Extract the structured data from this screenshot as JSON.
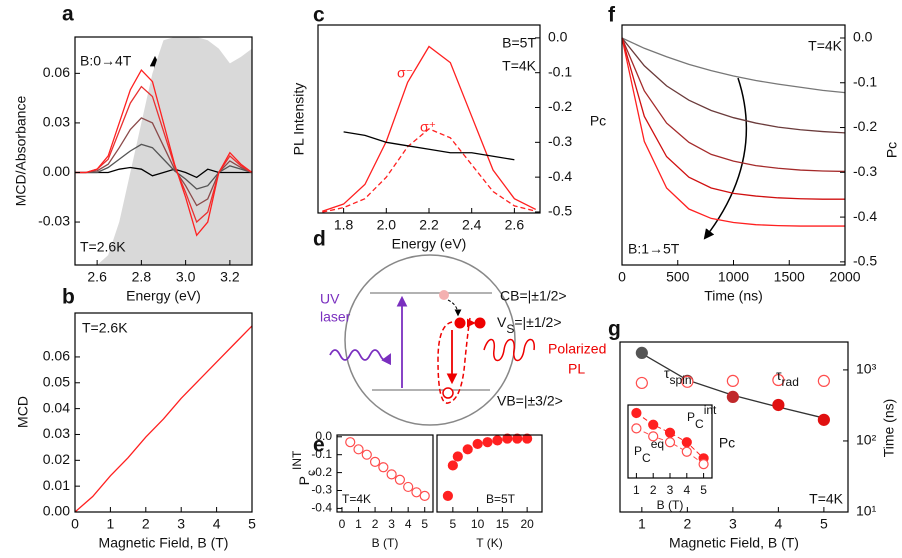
{
  "chart_data": [
    {
      "type": "line",
      "panel": "a",
      "xlabel": "Energy (eV)",
      "ylabel": "MCD/Absorbance",
      "xlim": [
        2.5,
        3.3
      ],
      "xticks": [
        2.6,
        2.8,
        {
          "value": 3.0,
          "label": "3.0"
        },
        3.2
      ],
      "ylim": [
        -0.056,
        0.082
      ],
      "yticks": [
        -0.03,
        {
          "value": 0,
          "label": "0.00"
        },
        0.03,
        0.06
      ],
      "annotations": [
        "B:0→4T",
        "T=2.6K"
      ],
      "x": [
        2.5,
        2.55,
        2.6,
        2.65,
        2.7,
        2.75,
        2.8,
        2.85,
        2.9,
        2.95,
        3.0,
        3.05,
        3.1,
        3.15,
        3.2,
        3.25,
        3.3
      ],
      "series": [
        {
          "type": "area",
          "color": "#d9d9d9",
          "values": [
            -0.056,
            -0.056,
            -0.056,
            -0.05,
            -0.03,
            0.0,
            0.03,
            0.06,
            0.08,
            0.082,
            0.082,
            0.082,
            0.08,
            0.075,
            0.066,
            0.07,
            0.075
          ]
        },
        {
          "color": "#000000",
          "values": [
            0,
            0,
            0,
            0,
            0.002,
            0.003,
            0.002,
            -0.002,
            0,
            0.002,
            0,
            -0.003,
            0.002,
            0,
            0,
            0,
            0
          ]
        },
        {
          "color": "#555555",
          "values": [
            0,
            0,
            0,
            0.003,
            0.008,
            0.013,
            0.017,
            0.015,
            0.008,
            0.001,
            -0.004,
            -0.01,
            -0.008,
            0,
            0.004,
            0.002,
            0
          ]
        },
        {
          "color": "#8b4a4a",
          "values": [
            0,
            0,
            0.001,
            0.005,
            0.015,
            0.026,
            0.033,
            0.03,
            0.016,
            0.002,
            -0.008,
            -0.02,
            -0.016,
            0,
            0.007,
            0.003,
            0
          ]
        },
        {
          "color": "#e83030",
          "values": [
            0,
            0,
            0.002,
            0.008,
            0.025,
            0.042,
            0.052,
            0.046,
            0.025,
            0.004,
            -0.012,
            -0.03,
            -0.024,
            0,
            0.01,
            0.004,
            0
          ]
        },
        {
          "color": "#ff2020",
          "values": [
            0,
            0,
            0.002,
            0.01,
            0.03,
            0.05,
            0.062,
            0.055,
            0.03,
            0.005,
            -0.015,
            -0.038,
            -0.03,
            0,
            0.012,
            0.005,
            0
          ]
        }
      ]
    },
    {
      "type": "line",
      "panel": "b",
      "xlabel": "Magnetic Field, B (T)",
      "ylabel": "MCD",
      "xlim": [
        0,
        5
      ],
      "xticks": [
        0,
        1,
        2,
        3,
        4,
        5
      ],
      "ylim": [
        0,
        0.077
      ],
      "yticks": [
        {
          "value": 0,
          "label": "0.00"
        },
        0.01,
        0.02,
        0.03,
        0.04,
        0.05,
        0.06
      ],
      "annotations": [
        "T=2.6K"
      ],
      "x": [
        0,
        0.5,
        1,
        1.5,
        2,
        2.5,
        3,
        3.5,
        4,
        4.5,
        5
      ],
      "series": [
        {
          "color": "#ff2020",
          "values": [
            0,
            0.006,
            0.014,
            0.021,
            0.029,
            0.036,
            0.044,
            0.051,
            0.058,
            0.065,
            0.072
          ]
        }
      ]
    },
    {
      "type": "line",
      "panel": "c",
      "xlabel": "Energy (eV)",
      "ylabel": "PL Intensity",
      "y2label": "Pc",
      "xlim": [
        1.68,
        2.72
      ],
      "xticks": [
        1.8,
        {
          "value": 2.0,
          "label": "2.0"
        },
        2.2,
        2.4,
        2.6
      ],
      "ylim": [
        0,
        1.05
      ],
      "y2lim": [
        -0.503,
        0.037
      ],
      "y2ticks": [
        {
          "value": 0,
          "label": "0.0"
        },
        -0.1,
        -0.2,
        -0.3,
        -0.4,
        -0.5
      ],
      "annotations": [
        "B=5T",
        "T=4K"
      ],
      "x": [
        1.7,
        1.8,
        1.9,
        2.0,
        2.1,
        2.2,
        2.3,
        2.4,
        2.5,
        2.6,
        2.7
      ],
      "series": [
        {
          "name": "σ⁻",
          "color": "#ff2020",
          "values": [
            0.01,
            0.05,
            0.16,
            0.4,
            0.73,
            0.93,
            0.84,
            0.54,
            0.24,
            0.08,
            0.02
          ]
        },
        {
          "name": "σ⁺",
          "color": "#ff2020",
          "dash": true,
          "values": [
            0.005,
            0.03,
            0.08,
            0.2,
            0.37,
            0.47,
            0.42,
            0.27,
            0.12,
            0.04,
            0.01
          ]
        },
        {
          "color": "#000000",
          "axis": "y2",
          "values": [
            null,
            -0.27,
            -0.28,
            -0.3,
            -0.31,
            -0.32,
            -0.33,
            -0.33,
            -0.34,
            -0.35,
            null
          ]
        }
      ]
    },
    {
      "type": "scatter",
      "panel": "e",
      "xlabel": "B (T)",
      "ylabel": {
        "base": "P",
        "sub": "c",
        "sup": "INT"
      },
      "xlim": [
        -0.3,
        5.5
      ],
      "xticks": [
        0,
        1,
        2,
        3,
        4,
        5
      ],
      "ylim": [
        -0.42,
        0.01
      ],
      "yticks": [
        {
          "value": 0,
          "label": "0.0"
        },
        -0.1,
        -0.2,
        -0.3,
        -0.4
      ],
      "annotations": [
        "T=4K"
      ],
      "x": [
        0.5,
        1,
        1.5,
        2,
        2.5,
        3,
        3.5,
        4,
        4.5,
        5
      ],
      "series": [
        {
          "color": "#ff4d4d",
          "marker": "open",
          "values": [
            -0.03,
            -0.07,
            -0.1,
            -0.14,
            -0.17,
            -0.21,
            -0.24,
            -0.28,
            -0.31,
            -0.33
          ]
        }
      ]
    },
    {
      "type": "scatter",
      "xlabel": "T (K)",
      "xlim": [
        1.8,
        23
      ],
      "xticks": [
        5,
        10,
        15,
        20
      ],
      "ylim": [
        -0.42,
        0.01
      ],
      "annotations": [
        "B=5T"
      ],
      "x": [
        4,
        5,
        6,
        8,
        10,
        12,
        14,
        16,
        18,
        20
      ],
      "series": [
        {
          "color": "#ff2020",
          "marker": "filled",
          "values": [
            -0.33,
            -0.16,
            -0.11,
            -0.07,
            -0.04,
            -0.03,
            -0.02,
            -0.01,
            -0.01,
            -0.01
          ]
        }
      ]
    },
    {
      "type": "line",
      "panel": "f",
      "xlabel": "Time (ns)",
      "y2label": "Pc",
      "xlim": [
        0,
        2000
      ],
      "xticks": [
        0,
        500,
        1000,
        1500,
        2000
      ],
      "y2lim": [
        -0.507,
        0.029
      ],
      "y2ticks": [
        {
          "value": 0,
          "label": "0.0"
        },
        -0.1,
        -0.2,
        -0.3,
        -0.4,
        -0.5
      ],
      "annotations": [
        "T=4K",
        "B:1→5T"
      ],
      "x": [
        0,
        200,
        400,
        600,
        800,
        1000,
        1200,
        1400,
        1600,
        1800,
        2000
      ],
      "series": [
        {
          "color": "#777777",
          "axis": "y2",
          "values": [
            0,
            -0.023,
            -0.042,
            -0.059,
            -0.073,
            -0.085,
            -0.095,
            -0.103,
            -0.11,
            -0.117,
            -0.122
          ]
        },
        {
          "color": "#6b3b3b",
          "axis": "y2",
          "values": [
            0,
            -0.062,
            -0.107,
            -0.139,
            -0.162,
            -0.178,
            -0.19,
            -0.199,
            -0.205,
            -0.209,
            -0.212
          ]
        },
        {
          "color": "#a52a2a",
          "axis": "y2",
          "values": [
            0,
            -0.118,
            -0.19,
            -0.233,
            -0.26,
            -0.275,
            -0.285,
            -0.291,
            -0.295,
            -0.297,
            -0.298
          ]
        },
        {
          "color": "#d01010",
          "axis": "y2",
          "values": [
            0,
            -0.175,
            -0.265,
            -0.311,
            -0.335,
            -0.347,
            -0.353,
            -0.357,
            -0.359,
            -0.36,
            -0.36
          ]
        },
        {
          "color": "#ff2020",
          "axis": "y2",
          "values": [
            0,
            -0.231,
            -0.335,
            -0.382,
            -0.403,
            -0.412,
            -0.417,
            -0.419,
            -0.42,
            -0.42,
            -0.42
          ]
        }
      ]
    },
    {
      "type": "scatter",
      "panel": "g",
      "xlabel": "Magnetic Field, B (T)",
      "y2label": "Time (ns)",
      "xlim": [
        0.52,
        5.53
      ],
      "xticks": [
        1,
        2,
        3,
        4,
        5
      ],
      "y2lim": [
        10,
        2470
      ],
      "y2log": true,
      "y2ticks": [
        {
          "value": 10,
          "label": "10¹"
        },
        {
          "value": 100,
          "label": "10²"
        },
        {
          "value": 1000,
          "label": "10³"
        }
      ],
      "annotations": [
        "T=4K"
      ],
      "x": [
        1,
        2,
        3,
        4,
        5
      ],
      "series": [
        {
          "type": "line",
          "color": "#333333",
          "axis": "y2",
          "values": [
            1700,
            720,
            440,
            300,
            210
          ]
        },
        {
          "name": {
            "base": "τ",
            "sub": "spin"
          },
          "axis": "y2",
          "marker": "filled",
          "colors": [
            "#555555",
            "#7a3535",
            "#c0282b",
            "#e01010",
            "#e01010"
          ],
          "color": "#555555",
          "values": [
            1735,
            700,
            417,
            321,
            198
          ]
        },
        {
          "name": {
            "base": "τ",
            "sub": "rad"
          },
          "axis": "y2",
          "marker": "open",
          "color": "#ff4d4d",
          "values": [
            655,
            680,
            700,
            720,
            700
          ]
        }
      ]
    },
    {
      "type": "scatter",
      "xlabel": "B (T)",
      "ylabel": "Pc",
      "xlim": [
        0.5,
        5.5
      ],
      "xticks": [
        1,
        2,
        3,
        4,
        5
      ],
      "ylim": [
        0,
        1
      ],
      "x": [
        1,
        2,
        3,
        4,
        5
      ],
      "series": [
        {
          "name": {
            "base": "P",
            "sub": "C",
            "sup": "int"
          },
          "color": "#ff2020",
          "marker": "filled",
          "dash": true,
          "values": [
            0.89,
            0.73,
            0.62,
            0.49,
            0.27
          ]
        },
        {
          "name": {
            "base": "P",
            "sub": "C",
            "sup": "eq"
          },
          "color": "#ff4d4d",
          "marker": "open",
          "dash": true,
          "values": [
            0.68,
            0.57,
            0.49,
            0.36,
            0.19
          ]
        }
      ]
    }
  ],
  "diagram": {
    "panel": "d",
    "cb": "CB=|±1/2>",
    "vs": {
      "base": "V",
      "sub": "S",
      "rest": "=|±1/2>"
    },
    "vb": "VB=|±3/2>",
    "laser": [
      "UV",
      "laser"
    ],
    "pl": [
      "Polarized",
      "PL"
    ]
  }
}
